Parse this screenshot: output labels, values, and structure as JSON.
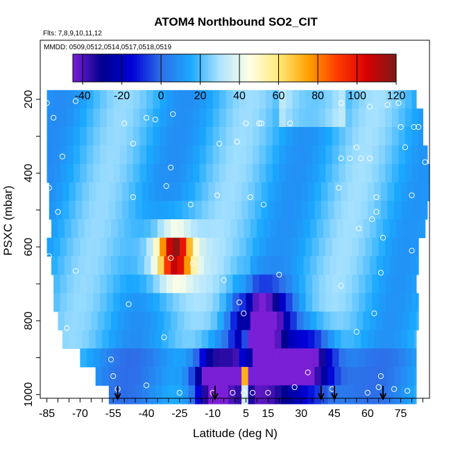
{
  "chart_data": {
    "type": "heatmap",
    "title": "ATOM4 Northbound SO2_CIT",
    "flights_label": "Flts: 7,8,9,10,11,12",
    "dates_label": "MMDD: 0509,0512,0514,0517,0518,0519",
    "xlabel": "Latitude (deg N)",
    "ylabel": "PSXC (mbar)",
    "xlim": [
      -88,
      88
    ],
    "ylim": [
      1010,
      40
    ],
    "x_ticks": [
      -85,
      -70,
      -55,
      -40,
      -25,
      -10,
      5,
      15,
      30,
      45,
      60,
      75
    ],
    "y_ticks": [
      200,
      400,
      600,
      800,
      1000
    ],
    "colorbar": {
      "ticks": [
        -40,
        -20,
        0,
        20,
        40,
        60,
        80,
        100,
        120
      ],
      "range": [
        -45,
        120
      ],
      "colors": [
        "#7a1fd6",
        "#00008c",
        "#0000d8",
        "#2e6ee8",
        "#1aa8ff",
        "#aee4ff",
        "#ffffe6",
        "#ffea7a",
        "#ffa200",
        "#ff3c00",
        "#d80000",
        "#7c1a1a"
      ]
    },
    "pressure_levels": [
      200,
      250,
      300,
      350,
      400,
      450,
      500,
      550,
      600,
      650,
      700,
      750,
      800,
      850,
      900,
      950,
      1000
    ],
    "row_ranges": [
      [
        -85,
        82
      ],
      [
        -85,
        85
      ],
      [
        -85,
        85
      ],
      [
        -85,
        87
      ],
      [
        -85,
        88
      ],
      [
        -84,
        88
      ],
      [
        -84,
        87
      ],
      [
        -83,
        86
      ],
      [
        -85,
        83
      ],
      [
        -83,
        83
      ],
      [
        -82,
        82
      ],
      [
        -82,
        83
      ],
      [
        -80,
        83
      ],
      [
        -78,
        82
      ],
      [
        -70,
        82
      ],
      [
        -63,
        82
      ],
      [
        -57,
        82
      ]
    ],
    "anomalies": [
      {
        "lat": -27,
        "p": 620,
        "dlat": 7,
        "dp": 55,
        "value": 110
      },
      {
        "lat": -30,
        "p": 630,
        "dlat": 14,
        "dp": 95,
        "value": 50
      },
      {
        "lat": -22,
        "p": 560,
        "dlat": 16,
        "dp": 110,
        "value": 20
      },
      {
        "lat": 5,
        "p": 960,
        "dlat": 1.5,
        "dp": 50,
        "value": 140
      },
      {
        "lat": 5,
        "p": 880,
        "dlat": 1.8,
        "dp": 150,
        "value": 55
      },
      {
        "lat": 12,
        "p": 800,
        "dlat": 12,
        "dp": 80,
        "value": -60
      },
      {
        "lat": 15,
        "p": 950,
        "dlat": 25,
        "dp": 80,
        "value": -45
      },
      {
        "lat": -10,
        "p": 960,
        "dlat": 8,
        "dp": 70,
        "value": -45
      },
      {
        "lat": 35,
        "p": 900,
        "dlat": 10,
        "dp": 80,
        "value": -25
      }
    ],
    "markers": [
      {
        "lat": -85,
        "p": 210
      },
      {
        "lat": -82,
        "p": 250
      },
      {
        "lat": -78,
        "p": 355
      },
      {
        "lat": -72,
        "p": 205
      },
      {
        "lat": -84,
        "p": 440
      },
      {
        "lat": -80,
        "p": 505
      },
      {
        "lat": -72,
        "p": 665
      },
      {
        "lat": -84,
        "p": 625
      },
      {
        "lat": -76,
        "p": 820
      },
      {
        "lat": -50,
        "p": 265
      },
      {
        "lat": -46,
        "p": 320
      },
      {
        "lat": -40,
        "p": 250
      },
      {
        "lat": -36,
        "p": 255
      },
      {
        "lat": -28,
        "p": 240
      },
      {
        "lat": -31,
        "p": 435
      },
      {
        "lat": -46,
        "p": 465
      },
      {
        "lat": -29,
        "p": 385
      },
      {
        "lat": -20,
        "p": 485
      },
      {
        "lat": -29,
        "p": 630
      },
      {
        "lat": -19,
        "p": 645
      },
      {
        "lat": -48,
        "p": 755
      },
      {
        "lat": -32,
        "p": 845
      },
      {
        "lat": -56,
        "p": 905
      },
      {
        "lat": -55,
        "p": 950
      },
      {
        "lat": -53,
        "p": 985
      },
      {
        "lat": -40,
        "p": 975
      },
      {
        "lat": -25,
        "p": 995
      },
      {
        "lat": -8,
        "p": 460
      },
      {
        "lat": -7,
        "p": 320
      },
      {
        "lat": 1,
        "p": 315
      },
      {
        "lat": 5,
        "p": 265
      },
      {
        "lat": 12,
        "p": 265
      },
      {
        "lat": 25,
        "p": 265
      },
      {
        "lat": 7,
        "p": 465
      },
      {
        "lat": 13,
        "p": 485
      },
      {
        "lat": -5,
        "p": 690
      },
      {
        "lat": 2,
        "p": 750
      },
      {
        "lat": 4,
        "p": 780
      },
      {
        "lat": 20,
        "p": 675
      },
      {
        "lat": 33,
        "p": 940
      },
      {
        "lat": 27,
        "p": 980
      },
      {
        "lat": 44,
        "p": 985
      },
      {
        "lat": 48,
        "p": 210
      },
      {
        "lat": 48,
        "p": 360
      },
      {
        "lat": 52,
        "p": 360
      },
      {
        "lat": 55,
        "p": 330
      },
      {
        "lat": 57,
        "p": 360
      },
      {
        "lat": 61,
        "p": 360
      },
      {
        "lat": 61,
        "p": 220
      },
      {
        "lat": 69,
        "p": 215
      },
      {
        "lat": 74,
        "p": 210
      },
      {
        "lat": 75,
        "p": 275
      },
      {
        "lat": 77,
        "p": 330
      },
      {
        "lat": 81,
        "p": 275
      },
      {
        "lat": 83,
        "p": 275
      },
      {
        "lat": 86,
        "p": 370
      },
      {
        "lat": 80,
        "p": 460
      },
      {
        "lat": 64,
        "p": 465
      },
      {
        "lat": 64,
        "p": 505
      },
      {
        "lat": 62,
        "p": 525
      },
      {
        "lat": 56,
        "p": 550
      },
      {
        "lat": 67,
        "p": 575
      },
      {
        "lat": 80,
        "p": 610
      },
      {
        "lat": 66,
        "p": 670
      },
      {
        "lat": 48,
        "p": 705
      },
      {
        "lat": 63,
        "p": 780
      },
      {
        "lat": 55,
        "p": 830
      },
      {
        "lat": 66,
        "p": 950
      },
      {
        "lat": 65,
        "p": 980
      },
      {
        "lat": 72,
        "p": 985
      },
      {
        "lat": 78,
        "p": 990
      },
      {
        "lat": 84,
        "p": 995
      },
      {
        "lat": 47,
        "p": 440
      },
      {
        "lat": 11,
        "p": 265
      },
      {
        "lat": -10,
        "p": 995
      },
      {
        "lat": 4,
        "p": 995
      },
      {
        "lat": 8,
        "p": 995
      },
      {
        "lat": 15,
        "p": 995
      },
      {
        "lat": -1,
        "p": 995
      },
      {
        "lat": 60,
        "p": 995
      }
    ],
    "arrows": [
      -53,
      -9,
      39,
      45,
      67
    ]
  }
}
